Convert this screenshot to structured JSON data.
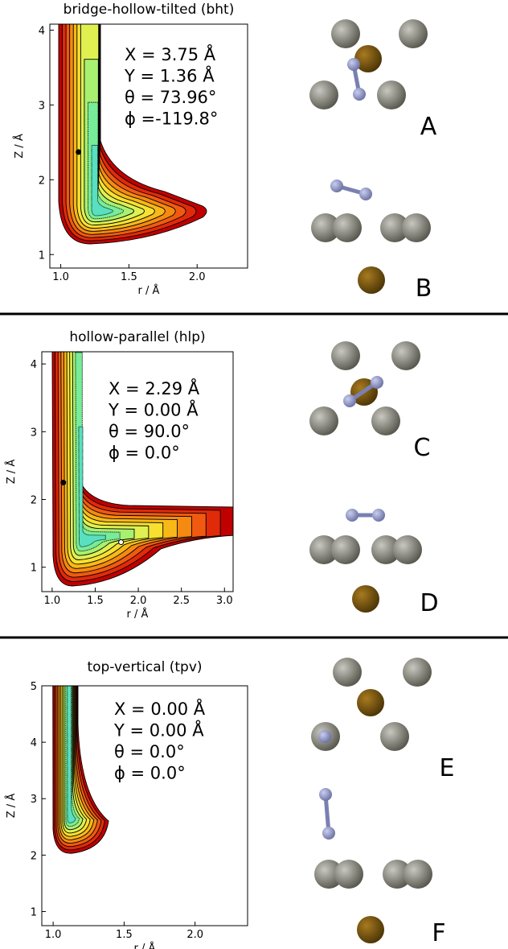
{
  "chart_data": [
    {
      "type": "contour",
      "title": "bridge-hollow-tilted (bht)",
      "x_label": "r / Å",
      "y_label": "Z / Å",
      "xlim": [
        0.92,
        2.37
      ],
      "ylim": [
        0.82,
        4.08
      ],
      "xticks": [
        {
          "value": 1,
          "label": "1.0"
        },
        {
          "value": 1.5,
          "label": "1.5"
        },
        {
          "value": 2,
          "label": "2.0"
        }
      ],
      "yticks": [
        1,
        2,
        3,
        4
      ],
      "annotations": [
        "X = 3.75 Å",
        "Y = 1.36 Å",
        "θ = 73.96°",
        "ϕ =-119.8°"
      ],
      "markers": [
        {
          "x": 1.13,
          "y": 2.37,
          "color": "#000000"
        }
      ]
    },
    {
      "type": "contour",
      "title": "hollow-parallel (hlp)",
      "x_label": "r / Å",
      "y_label": "Z / Å",
      "xlim": [
        0.88,
        3.1
      ],
      "ylim": [
        0.64,
        4.18
      ],
      "xticks": [
        {
          "value": 1,
          "label": "1.0"
        },
        {
          "value": 1.5,
          "label": "1.5"
        },
        {
          "value": 2,
          "label": "2.0"
        },
        {
          "value": 2.5,
          "label": "2.5"
        },
        {
          "value": 3,
          "label": "3.0"
        }
      ],
      "yticks": [
        1,
        2,
        3,
        4
      ],
      "annotations": [
        "X = 2.29 Å",
        "Y = 0.00 Å",
        "θ = 90.0°",
        "ϕ = 0.0°"
      ],
      "markers": [
        {
          "x": 1.13,
          "y": 2.25,
          "color": "#000000"
        },
        {
          "x": 1.8,
          "y": 1.37,
          "color": "#ffffff"
        }
      ]
    },
    {
      "type": "contour",
      "title": "top-vertical (tpv)",
      "x_label": "r / Å",
      "y_label": "Z / Å",
      "xlim": [
        0.92,
        2.37
      ],
      "ylim": [
        0.75,
        5.0
      ],
      "xticks": [
        {
          "value": 1,
          "label": "1.0"
        },
        {
          "value": 1.5,
          "label": "1.5"
        },
        {
          "value": 2,
          "label": "2.0"
        }
      ],
      "yticks": [
        1,
        2,
        3,
        4,
        5
      ],
      "annotations": [
        "X = 0.00 Å",
        "Y = 0.00 Å",
        "θ = 0.0°",
        "ϕ = 0.0°"
      ],
      "markers": []
    }
  ],
  "structure_labels": [
    "A",
    "B",
    "C",
    "D",
    "E",
    "F"
  ]
}
